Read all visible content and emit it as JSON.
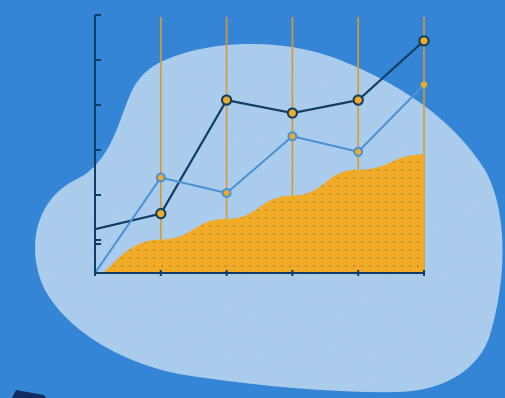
{
  "colors": {
    "background": "#3585d6",
    "blob": "#a9cdf0",
    "axis": "#123d63",
    "gridline": "#d99a2b",
    "area": "#f0ab28",
    "series_dark": "#123d63",
    "series_light": "#4a90d4",
    "marker_fill": "#f0ab28",
    "corner_shape": "#0f2d63"
  },
  "chart_data": {
    "type": "line",
    "title": "",
    "xlabel": "",
    "ylabel": "",
    "x": [
      0,
      1,
      2,
      3,
      4,
      5
    ],
    "xlim": [
      0,
      5
    ],
    "ylim": [
      0,
      100
    ],
    "grid": "vertical",
    "legend": "none",
    "series": [
      {
        "kind": "line",
        "style": "dark",
        "values": [
          17,
          23,
          67,
          62,
          67,
          90
        ]
      },
      {
        "kind": "line",
        "style": "light",
        "values": [
          0,
          37,
          31,
          53,
          47,
          73
        ]
      },
      {
        "kind": "area",
        "style": "area",
        "values": [
          4,
          13,
          21,
          30,
          40,
          46
        ]
      }
    ]
  }
}
